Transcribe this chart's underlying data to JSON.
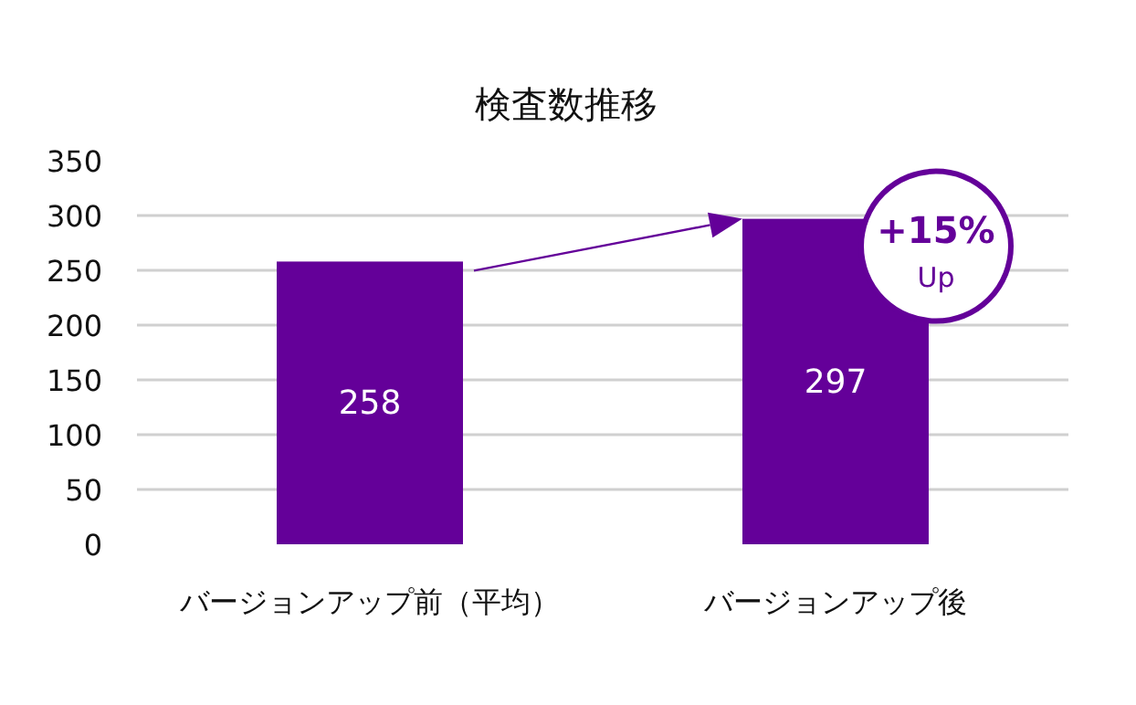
{
  "chart_data": {
    "type": "bar",
    "title": "検査数推移",
    "categories": [
      "バージョンアップ前（平均）",
      "バージョンアップ後"
    ],
    "values": [
      258,
      297
    ],
    "color": "#640099",
    "ylim": [
      0,
      350
    ],
    "yticks": [
      0,
      50,
      100,
      150,
      200,
      250,
      300,
      350
    ],
    "grid": "y",
    "data_labels": true,
    "annotations": [
      {
        "text": "+15% Up",
        "x": "バージョンアップ後",
        "y": 297
      }
    ]
  }
}
